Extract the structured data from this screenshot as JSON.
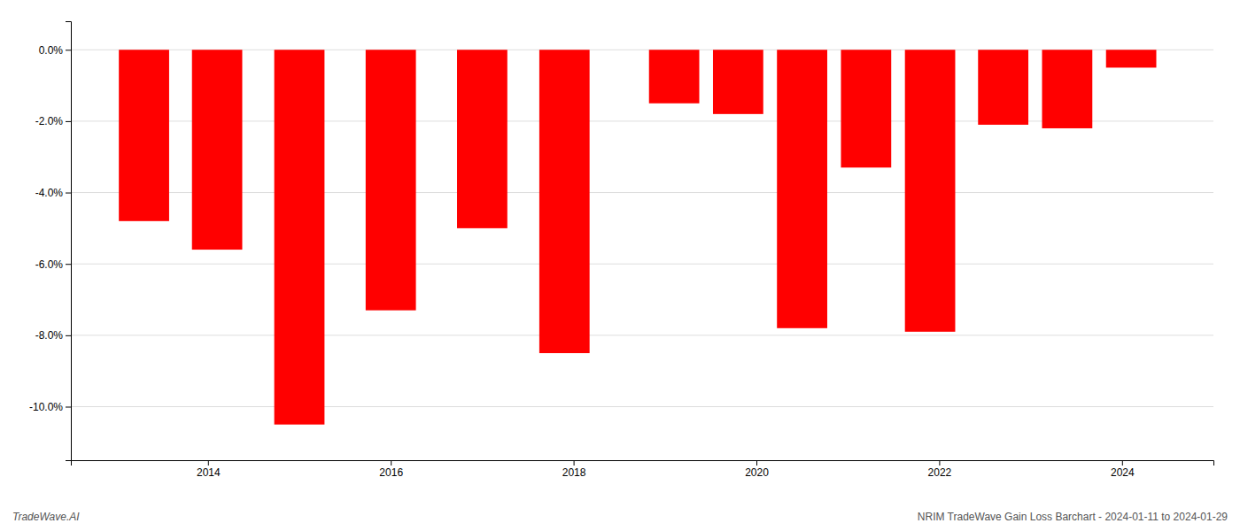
{
  "chart_data": {
    "type": "bar",
    "x": [
      2013.3,
      2014.1,
      2015.0,
      2016.0,
      2017.0,
      2017.9,
      2019.1,
      2019.8,
      2020.5,
      2021.2,
      2021.9,
      2022.7,
      2023.4,
      2024.1
    ],
    "values": [
      -4.8,
      -5.6,
      -10.5,
      -7.3,
      -5.0,
      -8.5,
      -1.5,
      -1.8,
      -7.8,
      -3.3,
      -7.9,
      -2.1,
      -2.2,
      -0.5
    ],
    "color": "#ff0000",
    "xlim": [
      2012.5,
      2025.0
    ],
    "xticks": [
      2014,
      2016,
      2018,
      2020,
      2022,
      2024
    ],
    "ylim": [
      -11.5,
      0.8
    ],
    "yticks": [
      {
        "value": 0.0,
        "label": "0.0%"
      },
      {
        "value": -2.0,
        "label": "-2.0%"
      },
      {
        "value": -4.0,
        "label": "-4.0%"
      },
      {
        "value": -6.0,
        "label": "-6.0%"
      },
      {
        "value": -8.0,
        "label": "-8.0%"
      },
      {
        "value": -10.0,
        "label": "-10.0%"
      }
    ],
    "grid": true,
    "annotations": [
      "TradeWave.AI",
      "NRIM TradeWave Gain Loss Barchart - 2024-01-11 to 2024-01-29"
    ]
  }
}
